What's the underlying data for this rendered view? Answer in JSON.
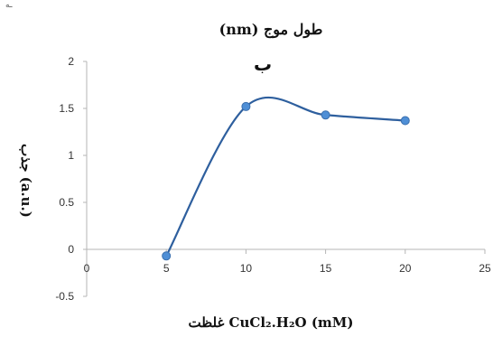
{
  "corner_mark": "ـه",
  "chart_data": {
    "type": "line",
    "title": "طول موج (nm)",
    "subtitle": "ب",
    "xlabel": "غلظت CuCl₂.H₂O (mM)",
    "ylabel": "جذب (a.u.)",
    "x": [
      5,
      10,
      15,
      20
    ],
    "series": [
      {
        "values": [
          -0.07,
          1.52,
          1.43,
          1.37
        ]
      }
    ],
    "xlim": [
      0,
      25
    ],
    "ylim": [
      -0.5,
      2
    ],
    "xticks": [
      "0",
      "5",
      "10",
      "15",
      "20",
      "25"
    ],
    "yticks": [
      "-0.5",
      "0",
      "0.5",
      "1",
      "1.5",
      "2"
    ],
    "smooth": true,
    "grid": false,
    "legend": "none",
    "line_color": "#2e5f9e",
    "marker_color": "#4f8fd6"
  }
}
